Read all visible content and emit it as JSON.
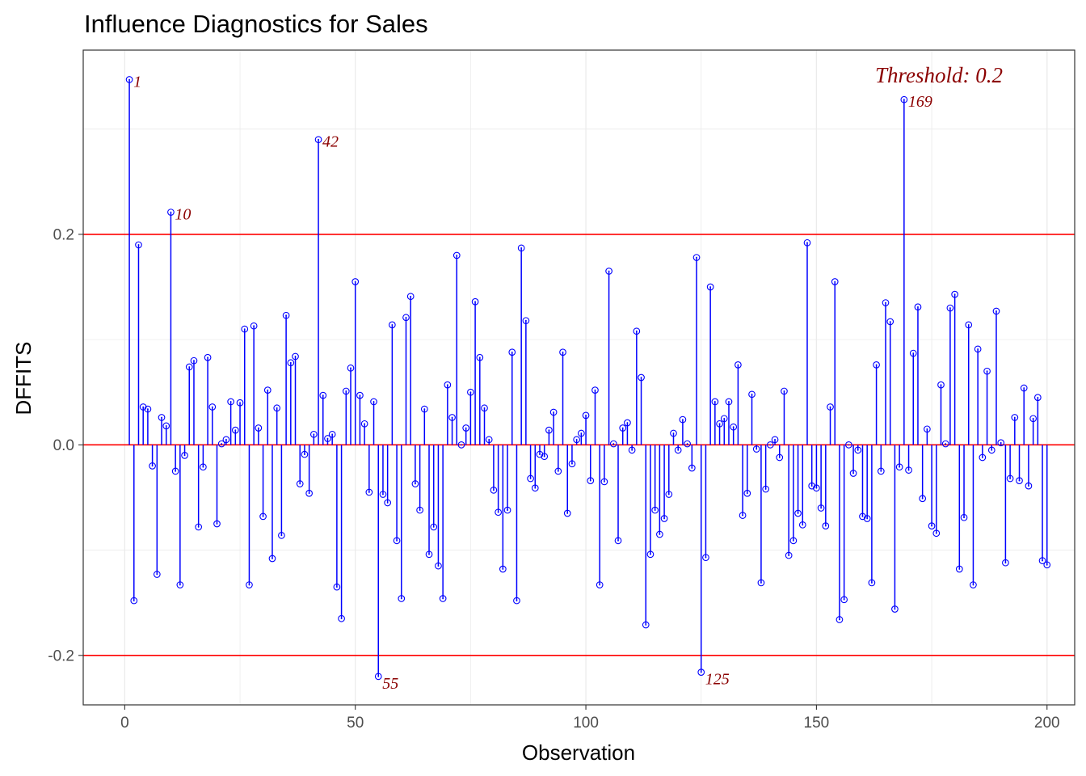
{
  "chart_data": {
    "type": "stem",
    "title": "Influence Diagnostics for Sales",
    "xlabel": "Observation",
    "ylabel": "DFFITS",
    "xlim": [
      -9,
      206
    ],
    "ylim": [
      -0.247,
      0.375
    ],
    "x_ticks": [
      0,
      50,
      100,
      150,
      200
    ],
    "x_tick_labels": [
      "0",
      "50",
      "100",
      "150",
      "200"
    ],
    "y_ticks": [
      -0.2,
      0.0,
      0.2
    ],
    "y_tick_labels": [
      "-0.2",
      "0.0",
      "0.2"
    ],
    "grid": true,
    "threshold": 0.2,
    "threshold_label": "Threshold: 0.2",
    "colors": {
      "stem": "#0000ff",
      "reference_line": "#ff0000",
      "annotation": "#8b0000",
      "grid": "#ebebeb",
      "panel_border": "#333333"
    },
    "x": [
      1,
      2,
      3,
      4,
      5,
      6,
      7,
      8,
      9,
      10,
      11,
      12,
      13,
      14,
      15,
      16,
      17,
      18,
      19,
      20,
      21,
      22,
      23,
      24,
      25,
      26,
      27,
      28,
      29,
      30,
      31,
      32,
      33,
      34,
      35,
      36,
      37,
      38,
      39,
      40,
      41,
      42,
      43,
      44,
      45,
      46,
      47,
      48,
      49,
      50,
      51,
      52,
      53,
      54,
      55,
      56,
      57,
      58,
      59,
      60,
      61,
      62,
      63,
      64,
      65,
      66,
      67,
      68,
      69,
      70,
      71,
      72,
      73,
      74,
      75,
      76,
      77,
      78,
      79,
      80,
      81,
      82,
      83,
      84,
      85,
      86,
      87,
      88,
      89,
      90,
      91,
      92,
      93,
      94,
      95,
      96,
      97,
      98,
      99,
      100,
      101,
      102,
      103,
      104,
      105,
      106,
      107,
      108,
      109,
      110,
      111,
      112,
      113,
      114,
      115,
      116,
      117,
      118,
      119,
      120,
      121,
      122,
      123,
      124,
      125,
      126,
      127,
      128,
      129,
      130,
      131,
      132,
      133,
      134,
      135,
      136,
      137,
      138,
      139,
      140,
      141,
      142,
      143,
      144,
      145,
      146,
      147,
      148,
      149,
      150,
      151,
      152,
      153,
      154,
      155,
      156,
      157,
      158,
      159,
      160,
      161,
      162,
      163,
      164,
      165,
      166,
      167,
      168,
      169,
      170,
      171,
      172,
      173,
      174,
      175,
      176,
      177,
      178,
      179,
      180,
      181,
      182,
      183,
      184,
      185,
      186,
      187,
      188,
      189,
      190,
      191,
      192,
      193,
      194,
      195,
      196,
      197,
      198,
      199,
      200
    ],
    "values": [
      0.347,
      -0.148,
      0.19,
      0.036,
      0.034,
      -0.02,
      -0.123,
      0.026,
      0.018,
      0.221,
      -0.025,
      -0.133,
      -0.01,
      0.074,
      0.08,
      -0.078,
      -0.021,
      0.083,
      0.036,
      -0.075,
      0.001,
      0.005,
      0.041,
      0.014,
      0.04,
      0.11,
      -0.133,
      0.113,
      0.016,
      -0.068,
      0.052,
      -0.108,
      0.035,
      -0.086,
      0.123,
      0.078,
      0.084,
      -0.037,
      -0.009,
      -0.046,
      0.01,
      0.29,
      0.047,
      0.006,
      0.01,
      -0.135,
      -0.165,
      0.051,
      0.073,
      0.155,
      0.047,
      0.02,
      -0.045,
      0.041,
      -0.22,
      -0.047,
      -0.055,
      0.114,
      -0.091,
      -0.146,
      0.121,
      0.141,
      -0.037,
      -0.062,
      0.034,
      -0.104,
      -0.078,
      -0.115,
      -0.146,
      0.057,
      0.026,
      0.18,
      0.0,
      0.016,
      0.05,
      0.136,
      0.083,
      0.035,
      0.005,
      -0.043,
      -0.064,
      -0.118,
      -0.062,
      0.088,
      -0.148,
      0.187,
      0.118,
      -0.032,
      -0.041,
      -0.009,
      -0.011,
      0.014,
      0.031,
      -0.025,
      0.088,
      -0.065,
      -0.018,
      0.005,
      0.011,
      0.028,
      -0.034,
      0.052,
      -0.133,
      -0.035,
      0.165,
      0.001,
      -0.091,
      0.016,
      0.021,
      -0.005,
      0.108,
      0.064,
      -0.171,
      -0.104,
      -0.062,
      -0.085,
      -0.07,
      -0.047,
      0.011,
      -0.005,
      0.024,
      0.001,
      -0.022,
      0.178,
      -0.216,
      -0.107,
      0.15,
      0.041,
      0.02,
      0.025,
      0.041,
      0.017,
      0.076,
      -0.067,
      -0.046,
      0.048,
      -0.004,
      -0.131,
      -0.042,
      0.0,
      0.005,
      -0.012,
      0.051,
      -0.105,
      -0.091,
      -0.065,
      -0.076,
      0.192,
      -0.039,
      -0.041,
      -0.06,
      -0.077,
      0.036,
      0.155,
      -0.166,
      -0.147,
      0.0,
      -0.027,
      -0.005,
      -0.068,
      -0.07,
      -0.131,
      0.076,
      -0.025,
      0.135,
      0.117,
      -0.156,
      -0.021,
      0.328,
      -0.024,
      0.087,
      0.131,
      -0.051,
      0.015,
      -0.077,
      -0.084,
      0.057,
      0.001,
      0.13,
      0.143,
      -0.118,
      -0.069,
      0.114,
      -0.133,
      0.091,
      -0.012,
      0.07,
      -0.005,
      0.127,
      0.002,
      -0.112,
      -0.032,
      0.026,
      -0.034,
      0.054,
      -0.039,
      0.025,
      0.045,
      -0.11,
      -0.114
    ],
    "labeled_points": [
      {
        "x": 1,
        "label": "1"
      },
      {
        "x": 10,
        "label": "10"
      },
      {
        "x": 42,
        "label": "42"
      },
      {
        "x": 55,
        "label": "55"
      },
      {
        "x": 125,
        "label": "125"
      },
      {
        "x": 169,
        "label": "169"
      }
    ]
  }
}
